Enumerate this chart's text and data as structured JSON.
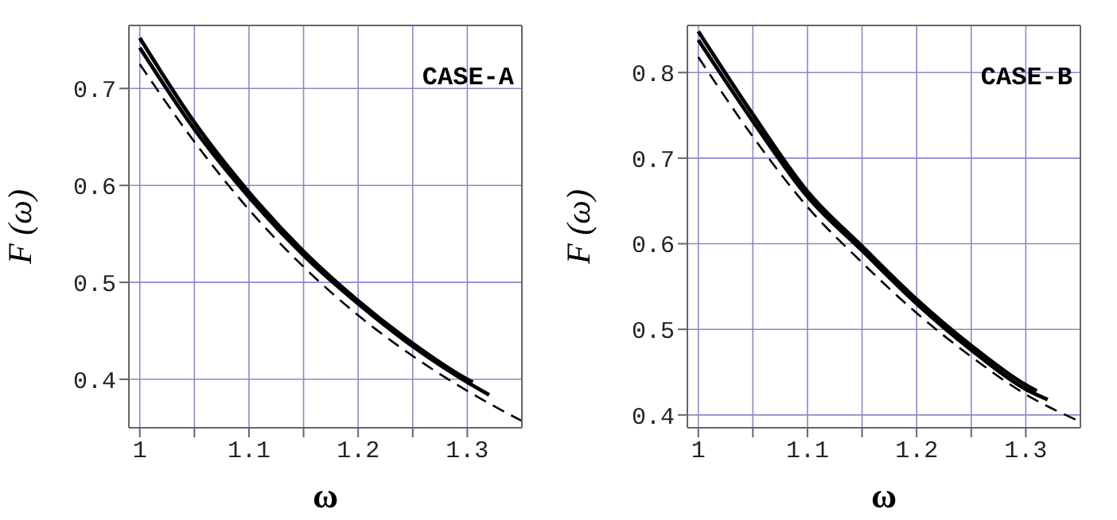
{
  "chart_data": [
    {
      "type": "line",
      "xlabel": "ω",
      "ylabel": "F (ω)",
      "annotations": [
        "CASE-A"
      ],
      "grid": true,
      "xlim": [
        0.99,
        1.35
      ],
      "ylim": [
        0.35,
        0.765
      ],
      "xticks": [
        1,
        {
          "value": 1.05,
          "label": null
        },
        1.1,
        {
          "value": 1.15,
          "label": null
        },
        1.2,
        {
          "value": 1.25,
          "label": null
        },
        1.3
      ],
      "yticks": [
        0.4,
        0.5,
        0.6,
        0.7
      ],
      "series": [
        {
          "color": "#000000",
          "line_style": "solid",
          "x": [
            1,
            1.05,
            1.1,
            1.15,
            1.2,
            1.25,
            1.3,
            1.305
          ],
          "values": [
            0.752,
            0.665,
            0.593,
            0.532,
            0.481,
            0.437,
            0.4,
            0.397
          ]
        },
        {
          "color": "#000000",
          "line_style": "solid",
          "x": [
            1,
            1.05,
            1.1,
            1.15,
            1.2,
            1.25,
            1.3,
            1.32
          ],
          "values": [
            0.742,
            0.658,
            0.588,
            0.528,
            0.478,
            0.434,
            0.397,
            0.384
          ]
        },
        {
          "color": "#000000",
          "line_style": "dashed",
          "x": [
            1,
            1.05,
            1.1,
            1.15,
            1.2,
            1.25,
            1.3,
            1.35
          ],
          "values": [
            0.725,
            0.645,
            0.575,
            0.516,
            0.466,
            0.424,
            0.388,
            0.357
          ]
        }
      ]
    },
    {
      "type": "line",
      "xlabel": "ω",
      "ylabel": "F (ω)",
      "annotations": [
        "CASE-B"
      ],
      "grid": true,
      "xlim": [
        0.99,
        1.35
      ],
      "ylim": [
        0.385,
        0.855
      ],
      "xticks": [
        1,
        {
          "value": 1.05,
          "label": null
        },
        1.1,
        {
          "value": 1.15,
          "label": null
        },
        1.2,
        {
          "value": 1.25,
          "label": null
        },
        1.3
      ],
      "yticks": [
        0.4,
        0.5,
        0.6,
        0.7,
        0.8
      ],
      "series": [
        {
          "color": "#000000",
          "line_style": "solid",
          "x": [
            1,
            1.05,
            1.1,
            1.15,
            1.2,
            1.25,
            1.3,
            1.31
          ],
          "values": [
            0.848,
            0.751,
            0.661,
            0.597,
            0.535,
            0.481,
            0.435,
            0.428
          ]
        },
        {
          "color": "#000000",
          "line_style": "solid",
          "x": [
            1,
            1.05,
            1.1,
            1.15,
            1.2,
            1.25,
            1.3,
            1.32
          ],
          "values": [
            0.838,
            0.743,
            0.655,
            0.592,
            0.53,
            0.476,
            0.43,
            0.418
          ]
        },
        {
          "color": "#000000",
          "line_style": "dashed",
          "x": [
            1,
            1.05,
            1.1,
            1.15,
            1.2,
            1.25,
            1.3,
            1.35
          ],
          "values": [
            0.818,
            0.725,
            0.643,
            0.578,
            0.519,
            0.468,
            0.424,
            0.392
          ]
        }
      ]
    }
  ]
}
